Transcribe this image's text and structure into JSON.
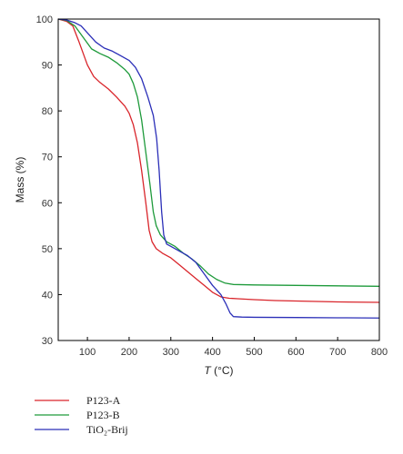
{
  "chart_data": {
    "type": "line",
    "xlabel_var": "T",
    "xlabel_unit": "(°C)",
    "ylabel": "Mass (%)",
    "xlim": [
      30,
      800
    ],
    "ylim": [
      30,
      100
    ],
    "x_ticks": [
      "100",
      "200",
      "300",
      "400",
      "500",
      "600",
      "700",
      "800"
    ],
    "x_tick_values": [
      100,
      200,
      300,
      400,
      500,
      600,
      700,
      800
    ],
    "y_ticks": [
      "30",
      "40",
      "50",
      "60",
      "70",
      "80",
      "90",
      "100"
    ],
    "y_tick_values": [
      30,
      40,
      50,
      60,
      70,
      80,
      90,
      100
    ],
    "grid": false,
    "legend_position": "below",
    "series": [
      {
        "name": "P123-A",
        "color": "#d9252b",
        "points": [
          [
            30,
            100
          ],
          [
            50,
            99.5
          ],
          [
            65,
            98.5
          ],
          [
            80,
            95
          ],
          [
            100,
            90
          ],
          [
            115,
            87.5
          ],
          [
            130,
            86.2
          ],
          [
            150,
            84.8
          ],
          [
            170,
            83
          ],
          [
            190,
            81
          ],
          [
            200,
            79.5
          ],
          [
            210,
            77
          ],
          [
            220,
            73
          ],
          [
            230,
            67
          ],
          [
            240,
            60
          ],
          [
            248,
            54
          ],
          [
            255,
            51.5
          ],
          [
            265,
            50
          ],
          [
            280,
            49
          ],
          [
            300,
            48
          ],
          [
            320,
            46.5
          ],
          [
            340,
            45
          ],
          [
            360,
            43.5
          ],
          [
            380,
            42
          ],
          [
            400,
            40.5
          ],
          [
            420,
            39.5
          ],
          [
            440,
            39.2
          ],
          [
            460,
            39.1
          ],
          [
            500,
            38.9
          ],
          [
            550,
            38.7
          ],
          [
            600,
            38.6
          ],
          [
            700,
            38.4
          ],
          [
            800,
            38.3
          ]
        ]
      },
      {
        "name": "P123-B",
        "color": "#1e9a3b",
        "points": [
          [
            30,
            100
          ],
          [
            50,
            99.7
          ],
          [
            70,
            98.5
          ],
          [
            90,
            96
          ],
          [
            110,
            93.5
          ],
          [
            130,
            92.5
          ],
          [
            150,
            91.7
          ],
          [
            170,
            90.5
          ],
          [
            190,
            89
          ],
          [
            200,
            88
          ],
          [
            210,
            86
          ],
          [
            220,
            83
          ],
          [
            230,
            78
          ],
          [
            240,
            71
          ],
          [
            250,
            64
          ],
          [
            258,
            58
          ],
          [
            265,
            55
          ],
          [
            275,
            53
          ],
          [
            290,
            51.5
          ],
          [
            310,
            50.5
          ],
          [
            330,
            49
          ],
          [
            350,
            47.8
          ],
          [
            370,
            46.3
          ],
          [
            390,
            44.5
          ],
          [
            410,
            43.3
          ],
          [
            430,
            42.5
          ],
          [
            450,
            42.2
          ],
          [
            500,
            42.1
          ],
          [
            600,
            42
          ],
          [
            700,
            41.9
          ],
          [
            800,
            41.8
          ]
        ]
      },
      {
        "name": "TiO₂-Brij",
        "color": "#2b2fb8",
        "points": [
          [
            30,
            100
          ],
          [
            50,
            99.8
          ],
          [
            70,
            99.2
          ],
          [
            85,
            98.5
          ],
          [
            100,
            97
          ],
          [
            120,
            95
          ],
          [
            140,
            93.7
          ],
          [
            160,
            93
          ],
          [
            180,
            92
          ],
          [
            200,
            91
          ],
          [
            215,
            89.5
          ],
          [
            230,
            87
          ],
          [
            245,
            83
          ],
          [
            258,
            79
          ],
          [
            266,
            74
          ],
          [
            272,
            67
          ],
          [
            278,
            58
          ],
          [
            283,
            53
          ],
          [
            290,
            51
          ],
          [
            300,
            50.5
          ],
          [
            320,
            49.5
          ],
          [
            340,
            48.5
          ],
          [
            360,
            47
          ],
          [
            380,
            44.5
          ],
          [
            400,
            42
          ],
          [
            420,
            40
          ],
          [
            432,
            38
          ],
          [
            442,
            36
          ],
          [
            450,
            35.2
          ],
          [
            470,
            35.1
          ],
          [
            500,
            35.05
          ],
          [
            600,
            35
          ],
          [
            700,
            34.95
          ],
          [
            800,
            34.9
          ]
        ]
      }
    ]
  }
}
